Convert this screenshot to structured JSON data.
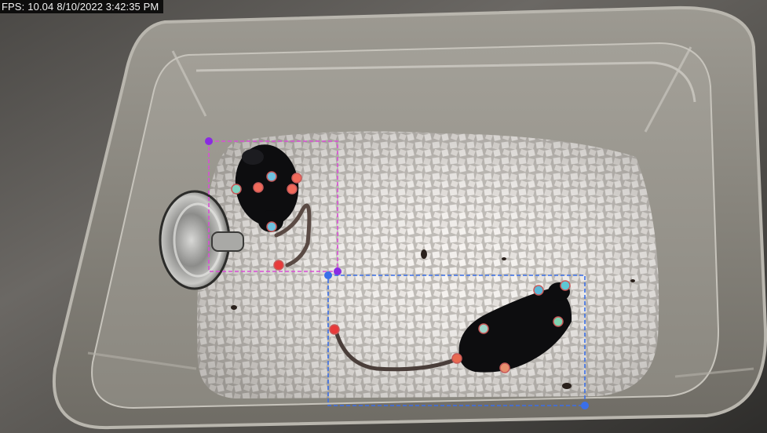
{
  "overlay": {
    "fps_label": "FPS:",
    "fps_value": "10.04",
    "timestamp": "8/10/2022 3:42:35 PM"
  },
  "detections": [
    {
      "id": "mouse-1",
      "box_color": "#d94fd6",
      "corner_color": "#8a2be2",
      "keypoints": [
        {
          "role": "ear-left",
          "color": "#7fd3c0"
        },
        {
          "role": "ear-right",
          "color": "#f06a5a"
        },
        {
          "role": "head",
          "color": "#6ec1e0"
        },
        {
          "role": "body-left",
          "color": "#f06a5a"
        },
        {
          "role": "body-right",
          "color": "#f06a5a"
        },
        {
          "role": "center",
          "color": "#6ec1e0"
        },
        {
          "role": "tail-base",
          "color": "#e83a3a"
        }
      ]
    },
    {
      "id": "mouse-2",
      "box_color": "#3a6fe8",
      "corner_color": "#3a6fe8",
      "keypoints": [
        {
          "role": "nose",
          "color": "#5bb8d6"
        },
        {
          "role": "ear-left",
          "color": "#5ec7d4"
        },
        {
          "role": "ear-right",
          "color": "#7fd3b0"
        },
        {
          "role": "center",
          "color": "#9fd4c8"
        },
        {
          "role": "tail-base",
          "color": "#e86a50"
        },
        {
          "role": "hip",
          "color": "#e8906e"
        },
        {
          "role": "tail-tip",
          "color": "#e83a3a"
        }
      ]
    }
  ],
  "colors": {
    "bedding": "#e9e6e2",
    "mouse_fur": "#0d0d0f",
    "cage_floor": "#8f8d87",
    "steel_counter": "#55534f"
  }
}
